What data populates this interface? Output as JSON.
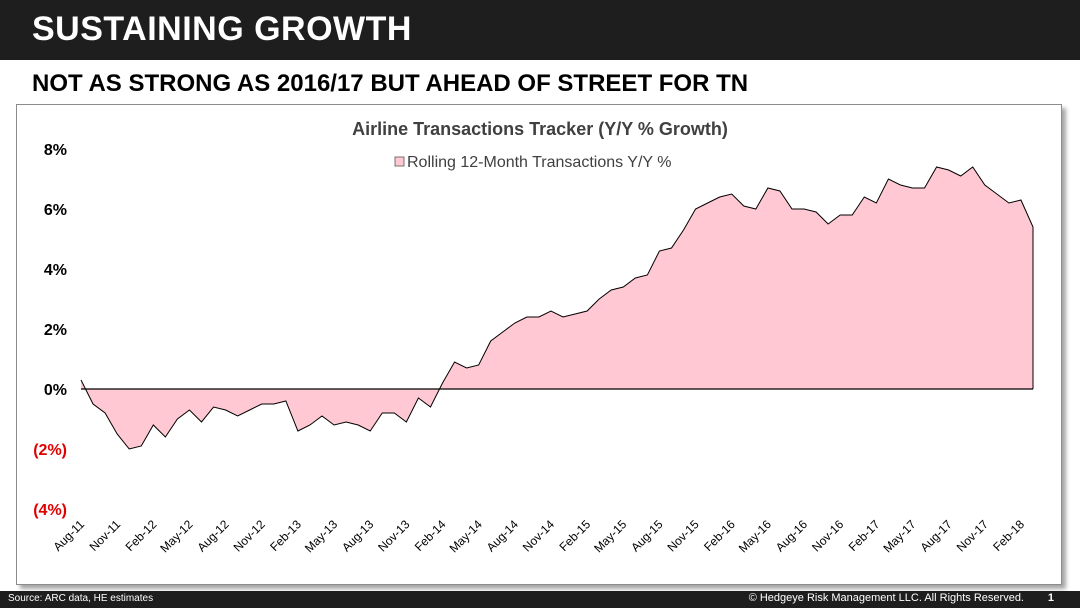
{
  "slide": {
    "title": "SUSTAINING GROWTH",
    "subtitle": "NOT AS STRONG AS 2016/17 BUT AHEAD OF STREET FOR TN"
  },
  "footer": {
    "source": "Source: ARC data, HE estimates",
    "copyright": "© Hedgeye Risk Management LLC. All Rights Reserved.",
    "page_number": "1"
  },
  "colors": {
    "area_fill": "#ffc8d2",
    "negative_label": "#e00000",
    "line": "#000000"
  },
  "chart_data": {
    "type": "area",
    "title": "Airline Transactions Tracker (Y/Y % Growth)",
    "legend": "Rolling 12-Month Transactions Y/Y %",
    "legend_position": "top-center",
    "ylim": [
      -4,
      8
    ],
    "y_ticks": [
      {
        "value": 8,
        "label": "8%"
      },
      {
        "value": 6,
        "label": "6%"
      },
      {
        "value": 4,
        "label": "4%"
      },
      {
        "value": 2,
        "label": "2%"
      },
      {
        "value": 0,
        "label": "0%"
      },
      {
        "value": -2,
        "label": "(2%)"
      },
      {
        "value": -4,
        "label": "(4%)"
      }
    ],
    "x_tick_labels": [
      "Aug-11",
      "Nov-11",
      "Feb-12",
      "May-12",
      "Aug-12",
      "Nov-12",
      "Feb-13",
      "May-13",
      "Aug-13",
      "Nov-13",
      "Feb-14",
      "May-14",
      "Aug-14",
      "Nov-14",
      "Feb-15",
      "May-15",
      "Aug-15",
      "Nov-15",
      "Feb-16",
      "May-16",
      "Aug-16",
      "Nov-16",
      "Feb-17",
      "May-17",
      "Aug-17",
      "Nov-17",
      "Feb-18"
    ],
    "x_tick_every": 3,
    "values": [
      0.3,
      -0.5,
      -0.8,
      -1.5,
      -2.0,
      -1.9,
      -1.2,
      -1.6,
      -1.0,
      -0.7,
      -1.1,
      -0.6,
      -0.7,
      -0.9,
      -0.7,
      -0.5,
      -0.5,
      -0.4,
      -1.4,
      -1.2,
      -0.9,
      -1.2,
      -1.1,
      -1.2,
      -1.4,
      -0.8,
      -0.8,
      -1.1,
      -0.3,
      -0.6,
      0.2,
      0.9,
      0.7,
      0.8,
      1.6,
      1.9,
      2.2,
      2.4,
      2.4,
      2.6,
      2.4,
      2.5,
      2.6,
      3.0,
      3.3,
      3.4,
      3.7,
      3.8,
      4.6,
      4.7,
      5.3,
      6.0,
      6.2,
      6.4,
      6.5,
      6.1,
      6.0,
      6.7,
      6.6,
      6.0,
      6.0,
      5.9,
      5.5,
      5.8,
      5.8,
      6.4,
      6.2,
      7.0,
      6.8,
      6.7,
      6.7,
      7.4,
      7.3,
      7.1,
      7.4,
      6.8,
      6.5,
      6.2,
      6.3,
      5.4
    ]
  }
}
